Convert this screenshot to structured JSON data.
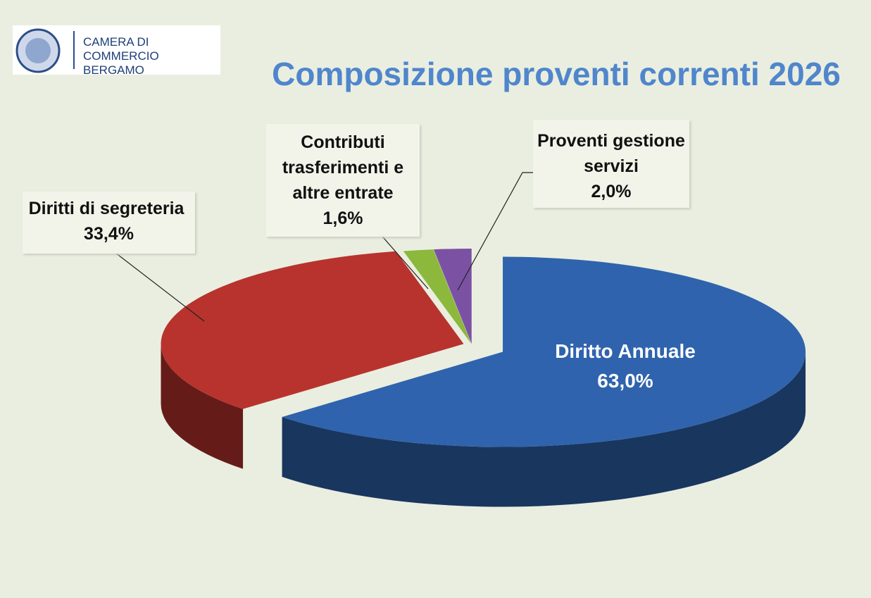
{
  "logo": {
    "lines": [
      "CAMERA DI COMMERCIO",
      "BERGAMO"
    ]
  },
  "chart_data": {
    "type": "pie",
    "title": "Composizione proventi correnti  2026",
    "categories": [
      "Diritto Annuale",
      "Diritti di segreteria",
      "Contributi trasferimenti e altre entrate",
      "Proventi gestione servizi"
    ],
    "values": [
      63.0,
      33.4,
      1.6,
      2.0
    ],
    "value_labels": [
      "63,0%",
      "33,4%",
      "1,6%",
      "2,0%"
    ],
    "colors": [
      "#2f63ad",
      "#b8332d",
      "#8cb83c",
      "#7b52a3"
    ]
  }
}
